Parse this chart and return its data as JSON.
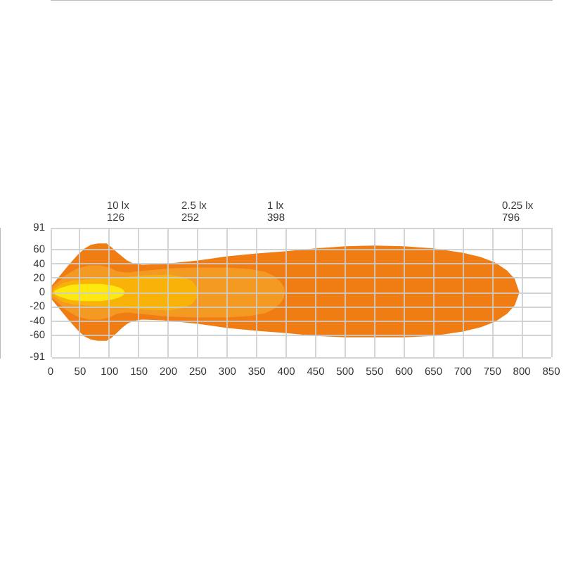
{
  "chart_data": {
    "type": "area",
    "xlim": [
      0,
      850
    ],
    "xticks": [
      0,
      50,
      100,
      150,
      200,
      250,
      300,
      350,
      400,
      450,
      500,
      550,
      600,
      650,
      700,
      750,
      800,
      850
    ],
    "ylim": [
      -91,
      91
    ],
    "yticks": [
      -91,
      -60,
      -40,
      -20,
      0,
      20,
      40,
      60,
      91
    ],
    "grid": true,
    "legend": false,
    "annotations": [
      "10 lx\n126",
      "2.5 lx\n252",
      "1 lx\n398",
      "0.25 lx\n796"
    ],
    "series": [
      {
        "color": "#f07c14",
        "x": [
          0,
          16,
          32,
          47,
          58,
          68,
          80,
          95,
          103,
          112,
          121,
          130,
          140,
          155,
          190,
          250,
          300,
          350,
          400,
          450,
          500,
          550,
          600,
          650,
          700,
          730,
          755,
          775,
          788,
          796
        ],
        "values": [
          8,
          24,
          40,
          54,
          62,
          67,
          69,
          69,
          64,
          57,
          51,
          45,
          41,
          39,
          40,
          45,
          51,
          55,
          58,
          62,
          65,
          66,
          65,
          62,
          56,
          50,
          42,
          31,
          19,
          0
        ]
      },
      {
        "color": "#f07c14",
        "x": [
          0,
          16,
          32,
          47,
          58,
          68,
          80,
          95,
          103,
          112,
          121,
          130,
          140,
          155,
          190,
          250,
          300,
          350,
          400,
          450,
          500,
          550,
          600,
          650,
          700,
          730,
          755,
          775,
          788,
          796
        ],
        "values": [
          -8,
          -24,
          -40,
          -54,
          -62,
          -66,
          -68,
          -68,
          -64,
          -57,
          -50,
          -44,
          -40,
          -38,
          -39,
          -44,
          -50,
          -54,
          -57,
          -61,
          -63,
          -63,
          -63,
          -61,
          -55,
          -49,
          -41,
          -30,
          -18,
          0
        ]
      },
      {
        "color": "#f49a22",
        "x": [
          1,
          12,
          25,
          45,
          65,
          85,
          100,
          112,
          130,
          150,
          200,
          250,
          300,
          340,
          365,
          380,
          390,
          396,
          398
        ],
        "values": [
          7,
          14,
          24,
          34,
          38,
          38,
          35,
          30,
          28,
          30,
          34,
          35,
          35,
          33,
          29,
          23,
          15,
          8,
          0
        ]
      },
      {
        "color": "#f49a22",
        "x": [
          1,
          12,
          25,
          45,
          65,
          85,
          100,
          112,
          130,
          150,
          200,
          250,
          300,
          340,
          365,
          380,
          390,
          396,
          398
        ],
        "values": [
          -7,
          -14,
          -24,
          -34,
          -38,
          -38,
          -35,
          -30,
          -28,
          -30,
          -34,
          -35,
          -35,
          -33,
          -29,
          -23,
          -15,
          -8,
          0
        ]
      },
      {
        "color": "#f9b208",
        "x": [
          3,
          12,
          20,
          40,
          70,
          100,
          130,
          160,
          200,
          225,
          240,
          248,
          252
        ],
        "values": [
          3,
          9,
          13,
          17,
          19,
          20,
          22,
          24,
          25,
          22,
          16,
          8,
          0
        ]
      },
      {
        "color": "#f9b208",
        "x": [
          3,
          12,
          20,
          40,
          70,
          100,
          130,
          160,
          200,
          225,
          240,
          248,
          252
        ],
        "values": [
          -3,
          -9,
          -13,
          -17,
          -19,
          -20,
          -22,
          -24,
          -25,
          -22,
          -16,
          -8,
          0
        ]
      },
      {
        "color": "#fde910",
        "x": [
          6,
          15,
          35,
          60,
          85,
          105,
          117,
          123,
          126
        ],
        "values": [
          2,
          6,
          11,
          12,
          12,
          10,
          7,
          4,
          0
        ]
      },
      {
        "color": "#fde910",
        "x": [
          6,
          15,
          35,
          60,
          85,
          105,
          117,
          123,
          126
        ],
        "values": [
          -2,
          -6,
          -11,
          -12,
          -12,
          -10,
          -7,
          -4,
          0
        ]
      }
    ]
  }
}
